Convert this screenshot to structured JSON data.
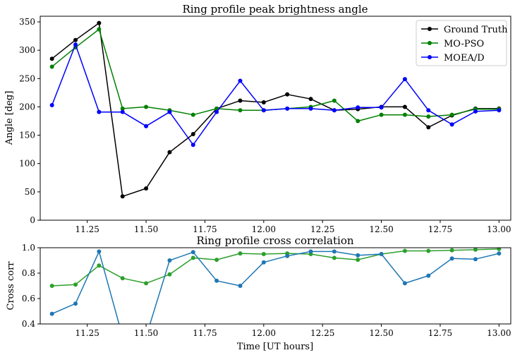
{
  "chart_data": [
    {
      "type": "line",
      "title": "Ring profile peak brightness angle",
      "xlabel": "",
      "ylabel": "Angle [deg]",
      "xlim": [
        11.05,
        13.05
      ],
      "ylim": [
        0,
        360
      ],
      "xticks": [
        11.25,
        11.5,
        11.75,
        12.0,
        12.25,
        12.5,
        12.75,
        13.0
      ],
      "xtick_labels": [
        "11.25",
        "11.50",
        "11.75",
        "12.00",
        "12.25",
        "12.50",
        "12.75",
        "13.00"
      ],
      "yticks": [
        0,
        50,
        100,
        150,
        200,
        250,
        300,
        350
      ],
      "ytick_labels": [
        "0",
        "50",
        "100",
        "150",
        "200",
        "250",
        "300",
        "350"
      ],
      "grid": false,
      "legend": "top-right",
      "x": [
        11.1,
        11.2,
        11.3,
        11.4,
        11.5,
        11.6,
        11.7,
        11.8,
        11.9,
        12.0,
        12.1,
        12.2,
        12.3,
        12.4,
        12.5,
        12.6,
        12.7,
        12.8,
        12.9,
        13.0
      ],
      "series": [
        {
          "name": "Ground Truth",
          "color": "#000000",
          "values": [
            285,
            318,
            348,
            42,
            56,
            120,
            152,
            197,
            211,
            208,
            222,
            214,
            194,
            196,
            200,
            200,
            164,
            185,
            197,
            197
          ]
        },
        {
          "name": "MO-PSO",
          "color": "#008000",
          "values": [
            271,
            305,
            337,
            197,
            200,
            194,
            186,
            197,
            194,
            194,
            197,
            200,
            211,
            175,
            186,
            186,
            183,
            186,
            196,
            196
          ]
        },
        {
          "name": "MOEA/D",
          "color": "#0000ff",
          "values": [
            203,
            310,
            191,
            191,
            166,
            191,
            133,
            191,
            246,
            194,
            197,
            197,
            194,
            199,
            199,
            249,
            194,
            169,
            192,
            194
          ]
        }
      ]
    },
    {
      "type": "line",
      "title": "Ring profile cross correlation",
      "xlabel": "Time [UT hours]",
      "ylabel": "Cross corr",
      "xlim": [
        11.05,
        13.05
      ],
      "ylim": [
        0.4,
        1.0
      ],
      "xticks": [
        11.25,
        11.5,
        11.75,
        12.0,
        12.25,
        12.5,
        12.75,
        13.0
      ],
      "xtick_labels": [
        "11.25",
        "11.50",
        "11.75",
        "12.00",
        "12.25",
        "12.50",
        "12.75",
        "13.00"
      ],
      "yticks": [
        0.4,
        0.6,
        0.8,
        1.0
      ],
      "ytick_labels": [
        "0.4",
        "0.6",
        "0.8",
        "1.0"
      ],
      "grid": false,
      "x": [
        11.1,
        11.2,
        11.3,
        11.4,
        11.5,
        11.6,
        11.7,
        11.8,
        11.9,
        12.0,
        12.1,
        12.2,
        12.3,
        12.4,
        12.5,
        12.6,
        12.7,
        12.8,
        12.9,
        13.0
      ],
      "series": [
        {
          "color": "#2ca02c",
          "values": [
            0.7,
            0.71,
            0.86,
            0.76,
            0.72,
            0.79,
            0.92,
            0.905,
            0.955,
            0.95,
            0.955,
            0.95,
            0.92,
            0.905,
            0.95,
            0.975,
            0.975,
            0.98,
            0.985,
            0.99
          ]
        },
        {
          "color": "#1f77b4",
          "values": [
            0.48,
            0.56,
            0.97,
            0.3,
            0.3,
            0.9,
            0.965,
            0.74,
            0.7,
            0.885,
            0.935,
            0.97,
            0.97,
            0.94,
            0.95,
            0.72,
            0.78,
            0.915,
            0.91,
            0.955
          ]
        }
      ]
    }
  ]
}
